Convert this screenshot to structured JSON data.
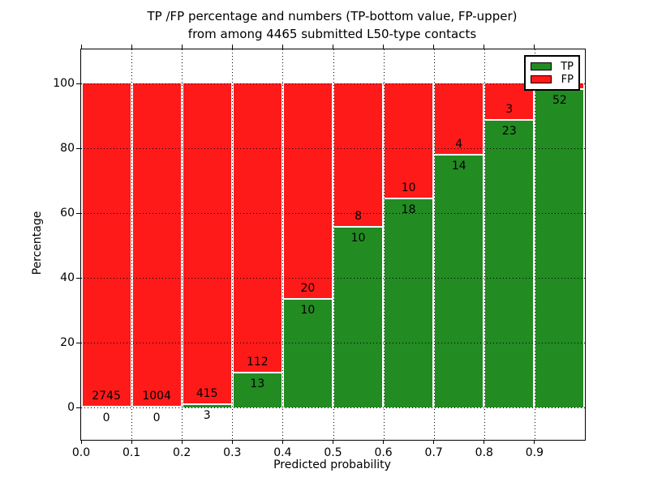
{
  "figure": {
    "title_line1": "TP /FP percentage and numbers (TP-bottom value, FP-upper)",
    "title_line2": "from among 4465 submitted L50-type contacts"
  },
  "chart_data": {
    "type": "bar",
    "subtype": "stacked-100pct-histogram",
    "title": "TP /FP percentage and numbers (TP-bottom value, FP-upper) from among 4465 submitted L50-type contacts",
    "xlabel": "Predicted probability",
    "ylabel": "Percentage",
    "total_submitted": 4465,
    "x_tick_labels": [
      "0.0",
      "0.1",
      "0.2",
      "0.3",
      "0.4",
      "0.5",
      "0.6",
      "0.7",
      "0.8",
      "0.9"
    ],
    "y_ticks": [
      0,
      20,
      40,
      60,
      80,
      100
    ],
    "xlim": [
      0.0,
      1.0
    ],
    "ylim": [
      -10,
      110.5
    ],
    "grid": true,
    "colors": {
      "tp": "#228b22",
      "fp": "#ff1a1a",
      "bar_edge": "#ffffff"
    },
    "legend": {
      "position": "upper right",
      "entries": [
        {
          "label": "TP",
          "color": "#228b22"
        },
        {
          "label": "FP",
          "color": "#ff1a1a"
        }
      ]
    },
    "series": [
      {
        "name": "TP",
        "counts": [
          0,
          0,
          3,
          13,
          10,
          10,
          18,
          14,
          23,
          52
        ]
      },
      {
        "name": "FP",
        "counts": [
          2745,
          1004,
          415,
          112,
          20,
          8,
          10,
          4,
          3,
          null
        ]
      }
    ],
    "bins": [
      {
        "x0": 0.0,
        "x1": 0.1,
        "tp_label": "0",
        "fp_label": "2745",
        "tp_pct": 0
      },
      {
        "x0": 0.1,
        "x1": 0.2,
        "tp_label": "0",
        "fp_label": "1004",
        "tp_pct": 0
      },
      {
        "x0": 0.2,
        "x1": 0.3,
        "tp_label": "3",
        "fp_label": "415",
        "tp_pct": 0.72
      },
      {
        "x0": 0.3,
        "x1": 0.4,
        "tp_label": "13",
        "fp_label": "112",
        "tp_pct": 10.4
      },
      {
        "x0": 0.4,
        "x1": 0.5,
        "tp_label": "10",
        "fp_label": "20",
        "tp_pct": 33.33
      },
      {
        "x0": 0.5,
        "x1": 0.6,
        "tp_label": "10",
        "fp_label": "8",
        "tp_pct": 55.56
      },
      {
        "x0": 0.6,
        "x1": 0.7,
        "tp_label": "18",
        "fp_label": "10",
        "tp_pct": 64.29
      },
      {
        "x0": 0.7,
        "x1": 0.8,
        "tp_label": "14",
        "fp_label": "4",
        "tp_pct": 77.78
      },
      {
        "x0": 0.8,
        "x1": 0.9,
        "tp_label": "23",
        "fp_label": "3",
        "tp_pct": 88.46
      },
      {
        "x0": 0.9,
        "x1": 1.0,
        "tp_label": "52",
        "fp_label": "",
        "tp_pct": 98.11
      }
    ]
  }
}
